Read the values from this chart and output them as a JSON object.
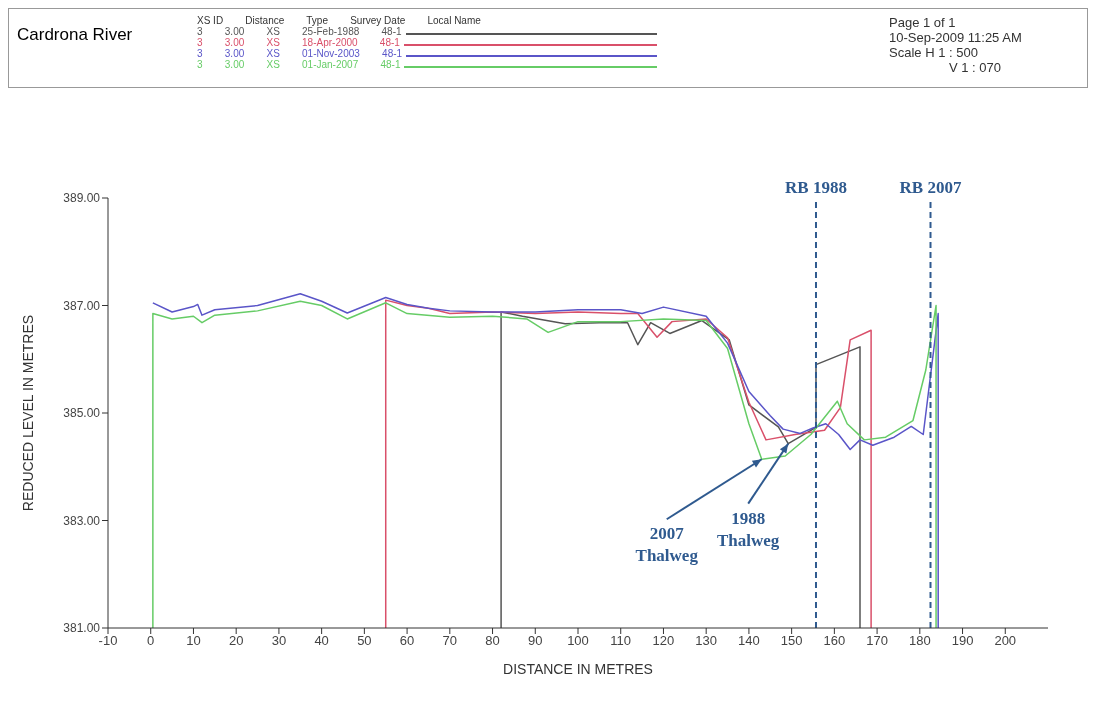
{
  "chart_data": {
    "type": "line",
    "title": "Cardrona River",
    "legend_title": "XS ID        Distance        Type        Survey Date        Local Name",
    "legend": "top",
    "xlabel": "DISTANCE IN METRES",
    "ylabel": "REDUCED LEVEL IN METRES",
    "xlim": [
      -10,
      210
    ],
    "xticks": [
      -10,
      0,
      10,
      20,
      30,
      40,
      50,
      60,
      70,
      80,
      90,
      100,
      110,
      120,
      130,
      140,
      150,
      160,
      170,
      180,
      190,
      200
    ],
    "ylim": [
      381,
      389
    ],
    "yticks": [
      {
        "value": 381,
        "label": "381.00"
      },
      {
        "value": 383,
        "label": "383.00"
      },
      {
        "value": 385,
        "label": "385.00"
      },
      {
        "value": 387,
        "label": "387.00"
      },
      {
        "value": 389,
        "label": "389.00"
      }
    ],
    "grid": false,
    "marker": "none",
    "line_style": "solid",
    "series": [
      {
        "name": "3        3.00        XS        25-Feb-1988        48-1",
        "color": "#555555",
        "x": [
          82,
          82,
          87,
          97,
          105,
          111.6,
          114,
          117,
          121.5,
          129,
          135.4,
          140,
          146.9,
          149.2,
          155,
          155.7,
          155.7,
          166,
          166
        ],
        "values": [
          381,
          386.88,
          386.8,
          386.66,
          386.68,
          386.68,
          386.27,
          386.68,
          386.48,
          386.72,
          386.36,
          385.15,
          384.74,
          384.43,
          384.7,
          384.72,
          385.9,
          386.23,
          381
        ]
      },
      {
        "name": "3        3.00        XS        18-Apr-2000        48-1",
        "color": "#d9506a",
        "x": [
          55,
          55,
          60,
          65,
          70,
          80,
          90,
          100,
          110,
          114,
          118.5,
          122,
          130,
          135,
          140,
          144,
          150.8,
          157.7,
          161.4,
          163.7,
          168.6,
          168.6
        ],
        "values": [
          381,
          387.1,
          387.0,
          386.95,
          386.85,
          386.88,
          386.85,
          386.88,
          386.85,
          386.85,
          386.41,
          386.7,
          386.75,
          386.4,
          385.2,
          384.5,
          384.6,
          384.68,
          385.1,
          386.36,
          386.54,
          381
        ]
      },
      {
        "name": "3        3.00        XS        01-Nov-2003        48-1",
        "color": "#5a55c8",
        "x": [
          0.5,
          5,
          10,
          11,
          12,
          15,
          25,
          35,
          40,
          46,
          55,
          60,
          65,
          70,
          80,
          90,
          100,
          110,
          115,
          120,
          130,
          135,
          140,
          145,
          148,
          152,
          155,
          158,
          161,
          163.7,
          166,
          169,
          174,
          178,
          180.8,
          184.3,
          184.3
        ],
        "values": [
          387.05,
          386.88,
          386.98,
          387.02,
          386.82,
          386.92,
          387.0,
          387.22,
          387.08,
          386.86,
          387.15,
          387.02,
          386.95,
          386.9,
          386.88,
          386.88,
          386.92,
          386.92,
          386.85,
          386.97,
          386.8,
          386.3,
          385.4,
          384.95,
          384.7,
          384.62,
          384.72,
          384.8,
          384.6,
          384.32,
          384.5,
          384.4,
          384.55,
          384.75,
          384.6,
          386.85,
          381
        ]
      },
      {
        "name": "3        3.00        XS        01-Jan-2007        48-1",
        "color": "#66cc66",
        "x": [
          0.5,
          0.5,
          5,
          10,
          12,
          15,
          25,
          35,
          40,
          46,
          55,
          60,
          70,
          80,
          88,
          93,
          100,
          110,
          120,
          130,
          135,
          140,
          143,
          148.5,
          154.5,
          160.7,
          163,
          167,
          172,
          178.4,
          181.4,
          183.8,
          183.8
        ],
        "values": [
          381,
          386.85,
          386.75,
          386.8,
          386.68,
          386.82,
          386.9,
          387.08,
          387.0,
          386.75,
          387.05,
          386.85,
          386.78,
          386.8,
          386.75,
          386.5,
          386.7,
          386.7,
          386.75,
          386.72,
          386.2,
          384.8,
          384.14,
          384.2,
          384.6,
          385.22,
          384.8,
          384.5,
          384.55,
          384.86,
          385.8,
          387.0,
          381
        ]
      }
    ],
    "ref_lines": [
      {
        "axis": "x",
        "value": 155.7,
        "label": "RB 1988",
        "color": "#2f5a8f",
        "line_style": "dashed"
      },
      {
        "axis": "x",
        "value": 182.5,
        "label": "RB 2007",
        "color": "#2f5a8f",
        "line_style": "dashed"
      }
    ],
    "annotations": [
      "Page 1 of 1",
      "10-Sep-2009 11:25 AM",
      "Scale H 1 : 500",
      "V 1 : 070",
      {
        "text": "2007 Thalweg",
        "x": 143,
        "y": 384.14
      },
      {
        "text": "1988 Thalweg",
        "x": 149.2,
        "y": 384.43
      }
    ]
  }
}
